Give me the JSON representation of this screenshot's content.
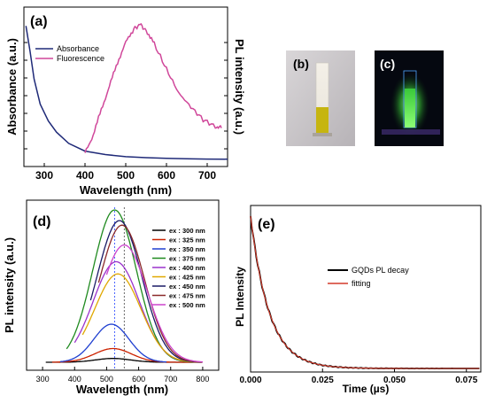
{
  "panel_a": {
    "tag": "(a)",
    "ylabel_left": "Absorbance (a.u.)",
    "ylabel_right": "PL intensity (a.u.)",
    "legend": [
      {
        "label": "Absorbance",
        "color": "#1f2a78"
      },
      {
        "label": "Fluorescence",
        "color": "#d0479a"
      }
    ]
  },
  "panel_b": {
    "tag": "(b)"
  },
  "panel_c": {
    "tag": "(c)"
  },
  "panel_d": {
    "tag": "(d)",
    "ylabel": "PL intensity (a.u.)"
  },
  "panel_e": {
    "tag": "(e)",
    "ylabel": "PL Intensity"
  },
  "chart_data": [
    {
      "id": "a",
      "type": "line",
      "xlabel": "Wavelength (nm)",
      "xlim": [
        250,
        750
      ],
      "xticks": [
        300,
        400,
        500,
        600,
        700
      ],
      "ylim": [
        0,
        1
      ],
      "series": [
        {
          "name": "Absorbance",
          "color": "#1f2a78",
          "x": [
            255,
            265,
            275,
            290,
            310,
            330,
            360,
            400,
            450,
            500,
            550,
            600,
            650,
            700,
            750
          ],
          "y": [
            0.98,
            0.8,
            0.6,
            0.42,
            0.3,
            0.22,
            0.14,
            0.085,
            0.06,
            0.045,
            0.038,
            0.033,
            0.03,
            0.028,
            0.027
          ]
        },
        {
          "name": "Fluorescence",
          "color": "#d0479a",
          "x": [
            400,
            420,
            440,
            460,
            480,
            500,
            520,
            535,
            550,
            570,
            600,
            630,
            660,
            690,
            720,
            735
          ],
          "y": [
            0.07,
            0.2,
            0.38,
            0.55,
            0.72,
            0.86,
            0.96,
            0.99,
            0.95,
            0.85,
            0.67,
            0.5,
            0.4,
            0.31,
            0.26,
            0.25
          ]
        }
      ]
    },
    {
      "id": "d",
      "type": "line",
      "xlabel": "Wavelength (nm)",
      "xlim": [
        250,
        850
      ],
      "xticks": [
        300,
        400,
        500,
        600,
        700,
        800
      ],
      "ylim": [
        0,
        1
      ],
      "reference_lines_x": [
        525,
        555
      ],
      "series": [
        {
          "name": "ex : 300 nm",
          "color": "#000000",
          "peak": 0.025,
          "center": 520,
          "sigma": 55,
          "start": 310,
          "end": 800
        },
        {
          "name": "ex : 325 nm",
          "color": "#cc2200",
          "peak": 0.09,
          "center": 520,
          "sigma": 58,
          "start": 330,
          "end": 800
        },
        {
          "name": "ex : 350 nm",
          "color": "#1f3fd0",
          "peak": 0.25,
          "center": 515,
          "sigma": 55,
          "start": 355,
          "end": 690
        },
        {
          "name": "ex : 375 nm",
          "color": "#1f8a1f",
          "peak": 1.0,
          "center": 525,
          "sigma": 68,
          "start": 375,
          "end": 800
        },
        {
          "name": "ex : 400 nm",
          "color": "#9a33cc",
          "peak": 0.66,
          "center": 530,
          "sigma": 72,
          "start": 400,
          "end": 800
        },
        {
          "name": "ex : 425 nm",
          "color": "#e0a800",
          "peak": 0.58,
          "center": 535,
          "sigma": 72,
          "start": 425,
          "end": 800
        },
        {
          "name": "ex : 450 nm",
          "color": "#1a1a66",
          "peak": 0.93,
          "center": 540,
          "sigma": 70,
          "start": 450,
          "end": 800
        },
        {
          "name": "ex : 475 nm",
          "color": "#8b2a2a",
          "peak": 0.9,
          "center": 548,
          "sigma": 70,
          "start": 475,
          "end": 800
        },
        {
          "name": "ex : 500 nm",
          "color": "#cc44cc",
          "peak": 0.77,
          "center": 555,
          "sigma": 72,
          "start": 500,
          "end": 800
        }
      ]
    },
    {
      "id": "e",
      "type": "line",
      "xlabel": "Time (µs)",
      "xlim": [
        0.0,
        0.08
      ],
      "xticks": [
        "0.000",
        "0.025",
        "0.050",
        "0.075"
      ],
      "ylim": [
        0,
        1
      ],
      "series": [
        {
          "name": "GQDs PL decay",
          "color": "#000000",
          "tau": 0.0065
        },
        {
          "name": "fitting",
          "color": "#d43a2a",
          "tau": 0.0065
        }
      ]
    }
  ]
}
